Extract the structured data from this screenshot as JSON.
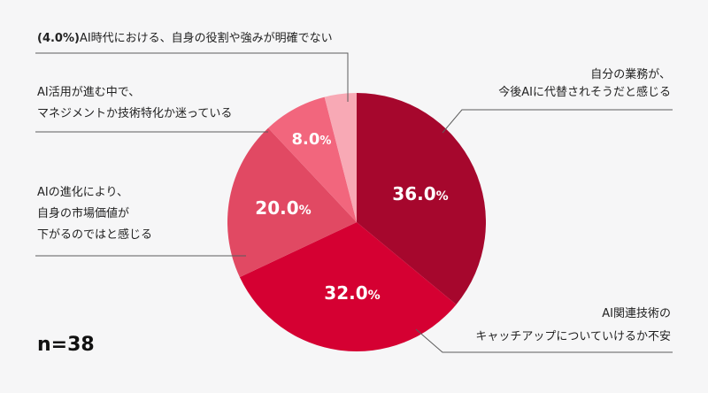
{
  "chart_data": {
    "type": "pie",
    "sample_size_label": "n=38",
    "unit": "%",
    "slices": [
      {
        "label_lines": [
          "自分の業務が、",
          "今後AIに代替されそうだと感じる"
        ],
        "value": 36.0,
        "color": "#a6072d"
      },
      {
        "label_lines": [
          "AI関連技術の",
          "キャッチアップについていけるか不安"
        ],
        "value": 32.0,
        "color": "#d50032"
      },
      {
        "label_lines": [
          "AIの進化により、",
          "自身の市場価値が",
          "下がるのではと感じる"
        ],
        "value": 20.0,
        "color": "#e14963"
      },
      {
        "label_lines": [
          "AI活用が進む中で、",
          "マネジメントか技術特化か迷っている"
        ],
        "value": 8.0,
        "color": "#f2667d"
      },
      {
        "label_lines": [
          "AI時代における、自身の役割や強みが明確でない"
        ],
        "value": 4.0,
        "color": "#f8a9b5"
      }
    ],
    "value_labels": [
      "36.0",
      "32.0",
      "20.0",
      "8.0",
      "(4.0%)"
    ]
  }
}
